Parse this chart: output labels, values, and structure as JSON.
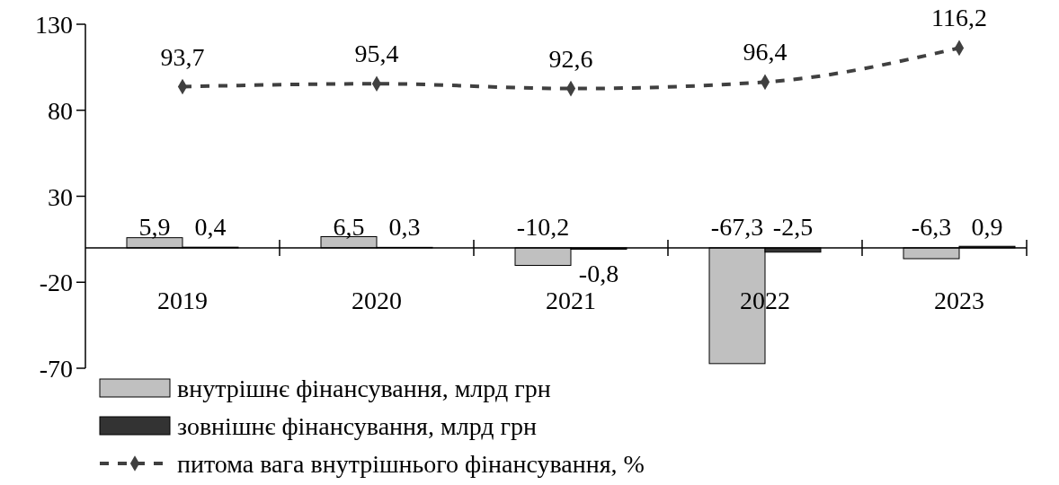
{
  "chart_data": {
    "type": "bar",
    "categories": [
      "2019",
      "2020",
      "2021",
      "2022",
      "2023"
    ],
    "series": [
      {
        "name": "внутрішнє фінансування, млрд грн",
        "color": "#c0c0c0",
        "values": [
          5.9,
          6.5,
          -10.2,
          -67.3,
          -6.3
        ],
        "value_labels": [
          "5,9",
          "6,5",
          "-10,2",
          "-67,3",
          "-6,3"
        ]
      },
      {
        "name": "зовнішнє фінансування, млрд грн",
        "color": "#333333",
        "values": [
          0.4,
          0.3,
          -0.8,
          -2.5,
          0.9
        ],
        "value_labels": [
          "0,4",
          "0,3",
          "-0,8",
          "-2,5",
          "0,9"
        ]
      },
      {
        "name": "питома вага внутрішнього фінансування, %",
        "type": "line",
        "color": "#404040",
        "line_style": "dashed",
        "marker": "diamond",
        "values": [
          93.7,
          95.4,
          92.6,
          96.4,
          116.2
        ],
        "value_labels": [
          "93,7",
          "95,4",
          "92,6",
          "96,4",
          "116,2"
        ]
      }
    ],
    "ylim": [
      -70,
      130
    ],
    "yticks": [
      -70,
      -20,
      30,
      80,
      130
    ],
    "legend": "bottom left"
  }
}
